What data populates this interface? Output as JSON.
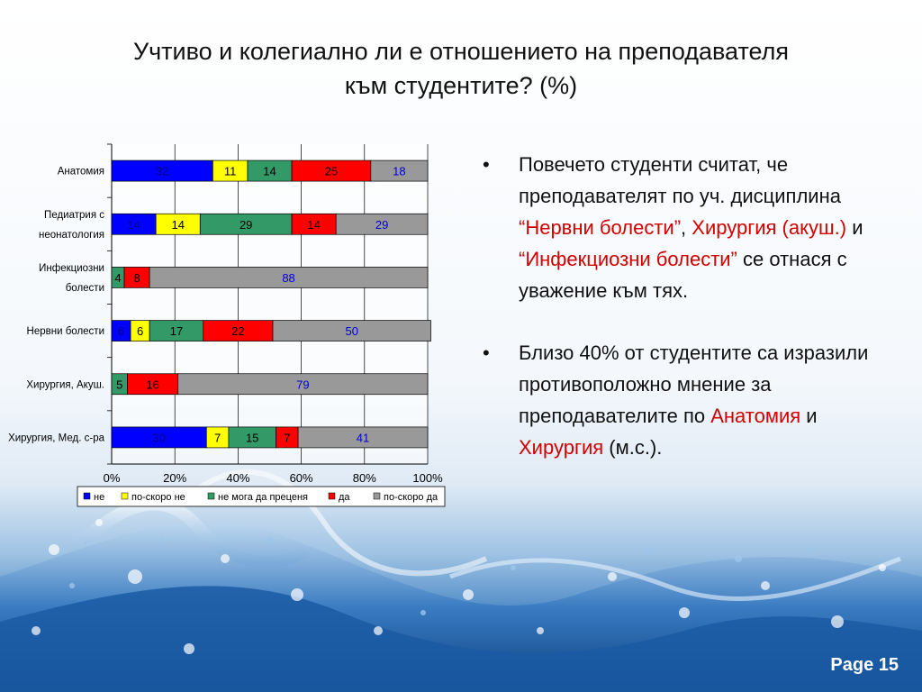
{
  "title": {
    "line1": "Учтиво и колегиално ли е отношението на преподавателя",
    "line2": "към студентите? (%)"
  },
  "chart_data": {
    "type": "bar",
    "orientation": "horizontal-stacked-100",
    "categories": [
      "Анатомия",
      "Педиатрия с неонатология",
      "Инфекциозни болести",
      "Нервни болести",
      "Хирургия, Акуш.",
      "Хирургия, Мед. с-ра"
    ],
    "category_lines": [
      [
        "Анатомия"
      ],
      [
        "Педиатрия с",
        "неонатология"
      ],
      [
        "Инфекциозни",
        "болести"
      ],
      [
        "Нервни болести"
      ],
      [
        "Хирургия, Акуш."
      ],
      [
        "Хирургия, Мед. с-ра"
      ]
    ],
    "series": [
      {
        "name": "не",
        "color": "#0000ff",
        "label_color": "#000080",
        "values": [
          32,
          14,
          0,
          6,
          0,
          30
        ]
      },
      {
        "name": "по-скоро не",
        "color": "#ffff00",
        "label_color": "#000000",
        "values": [
          11,
          14,
          0,
          6,
          0,
          7
        ]
      },
      {
        "name": "не мога да преценя",
        "color": "#339966",
        "label_color": "#000000",
        "values": [
          14,
          29,
          4,
          17,
          5,
          15
        ]
      },
      {
        "name": "да",
        "color": "#ff0000",
        "label_color": "#000000",
        "values": [
          25,
          14,
          8,
          22,
          16,
          7
        ]
      },
      {
        "name": "по-скоро да",
        "color": "#999999",
        "label_color": "#0000cc",
        "values": [
          18,
          29,
          88,
          50,
          79,
          41
        ]
      }
    ],
    "x_ticks": [
      "0%",
      "20%",
      "40%",
      "60%",
      "80%",
      "100%"
    ],
    "xlim": [
      0,
      100
    ],
    "grid": true,
    "legend": "bottom"
  },
  "bullets": [
    [
      {
        "t": "Повечето студенти считат, че преподавателят по уч. дисциплина ",
        "red": false
      },
      {
        "t": "“Нервни болести”",
        "red": true
      },
      {
        "t": ", ",
        "red": false
      },
      {
        "t": "Хирургия (акуш.)",
        "red": true
      },
      {
        "t": " и ",
        "red": false
      },
      {
        "t": "“Инфекциозни болести”",
        "red": true
      },
      {
        "t": " се отнася с уважение към тях.",
        "red": false
      }
    ],
    [
      {
        "t": "Близо 40% от студентите са изразили противоположно мнение за преподавателите по ",
        "red": false
      },
      {
        "t": "Анатомия",
        "red": true
      },
      {
        "t": " и ",
        "red": false
      },
      {
        "t": "Хирургия",
        "red": true
      },
      {
        "t": " (м.с.).",
        "red": false
      }
    ]
  ],
  "bullet_char": "•",
  "page_label": "Page 15"
}
